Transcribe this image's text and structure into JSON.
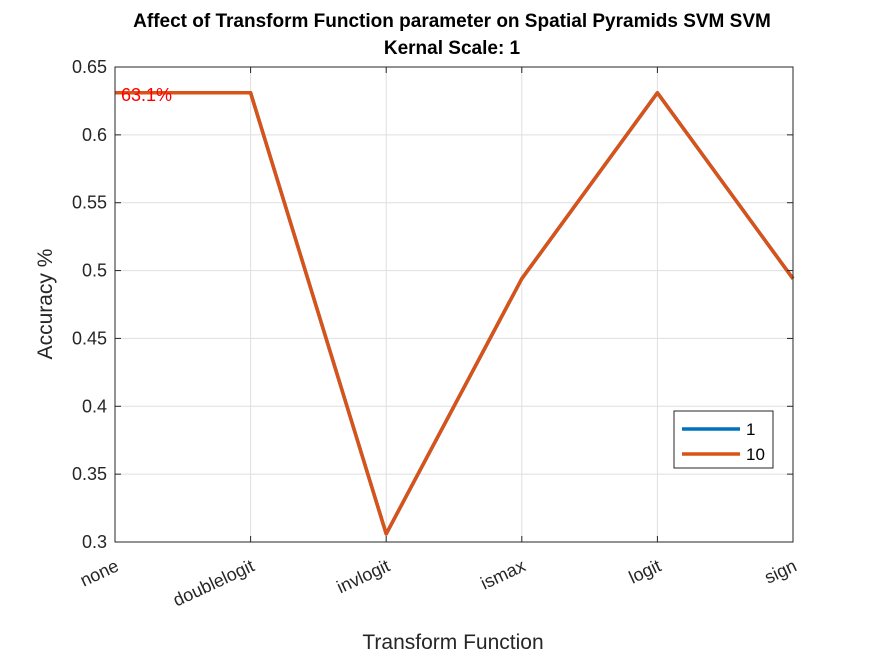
{
  "chart_data": {
    "type": "line",
    "title": "Affect of Transform Function parameter on Spatial Pyramids SVM SVM",
    "subtitle": "Kernal Scale: 1",
    "xlabel": "Transform Function",
    "ylabel": "Accuracy %",
    "categories": [
      "none",
      "doublelogit",
      "invlogit",
      "ismax",
      "logit",
      "sign"
    ],
    "ylim": [
      0.3,
      0.65
    ],
    "yticks": [
      0.3,
      0.35,
      0.4,
      0.45,
      0.5,
      0.55,
      0.6,
      0.65
    ],
    "ytick_labels": [
      "0.3",
      "0.35",
      "0.4",
      "0.45",
      "0.5",
      "0.55",
      "0.6",
      "0.65"
    ],
    "grid": true,
    "legend_position": "bottom-right",
    "series": [
      {
        "name": "1",
        "color": "#0072BD",
        "values": [
          0.631,
          0.631,
          0.306,
          0.494,
          0.631,
          0.494
        ]
      },
      {
        "name": "10",
        "color": "#D95319",
        "values": [
          0.631,
          0.631,
          0.306,
          0.494,
          0.631,
          0.494
        ]
      }
    ],
    "annotations": [
      {
        "text": "63.1%",
        "x": "none",
        "y": 0.631,
        "color": "#FF0000"
      }
    ]
  }
}
